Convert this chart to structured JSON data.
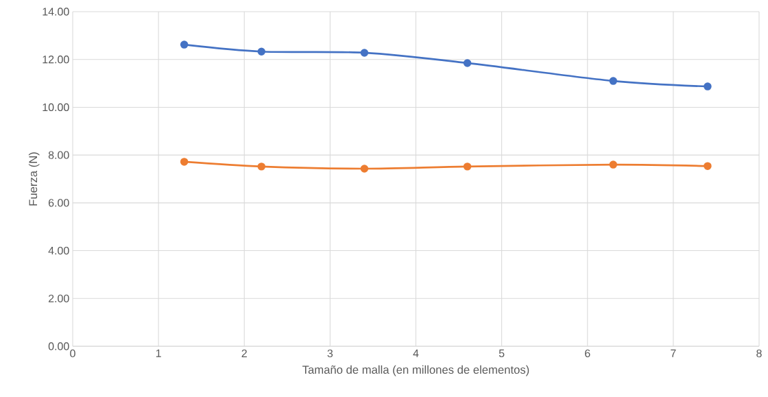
{
  "chart_data": {
    "type": "line",
    "xlabel": "Tamaño de malla (en millones de elementos)",
    "ylabel": "Fuerza (N)",
    "x": [
      1.3,
      2.2,
      3.4,
      4.6,
      6.3,
      7.4
    ],
    "series": [
      {
        "color": "#4472c4",
        "values": [
          12.62,
          12.33,
          12.28,
          11.85,
          11.1,
          10.87
        ]
      },
      {
        "color": "#ed7d31",
        "values": [
          7.72,
          7.52,
          7.43,
          7.52,
          7.6,
          7.54
        ]
      }
    ],
    "xlim": [
      0,
      8
    ],
    "xticks": [
      0,
      1,
      2,
      3,
      4,
      5,
      6,
      7,
      8
    ],
    "ylim": [
      0,
      14
    ],
    "yticks": [
      {
        "value": 0,
        "label": "0.00"
      },
      {
        "value": 2,
        "label": "2.00"
      },
      {
        "value": 4,
        "label": "4.00"
      },
      {
        "value": 6,
        "label": "6.00"
      },
      {
        "value": 8,
        "label": "8.00"
      },
      {
        "value": 10,
        "label": "10.00"
      },
      {
        "value": 12,
        "label": "12.00"
      },
      {
        "value": 14,
        "label": "14.00"
      }
    ],
    "grid": true,
    "marker": "circle",
    "line_style": "solid"
  }
}
